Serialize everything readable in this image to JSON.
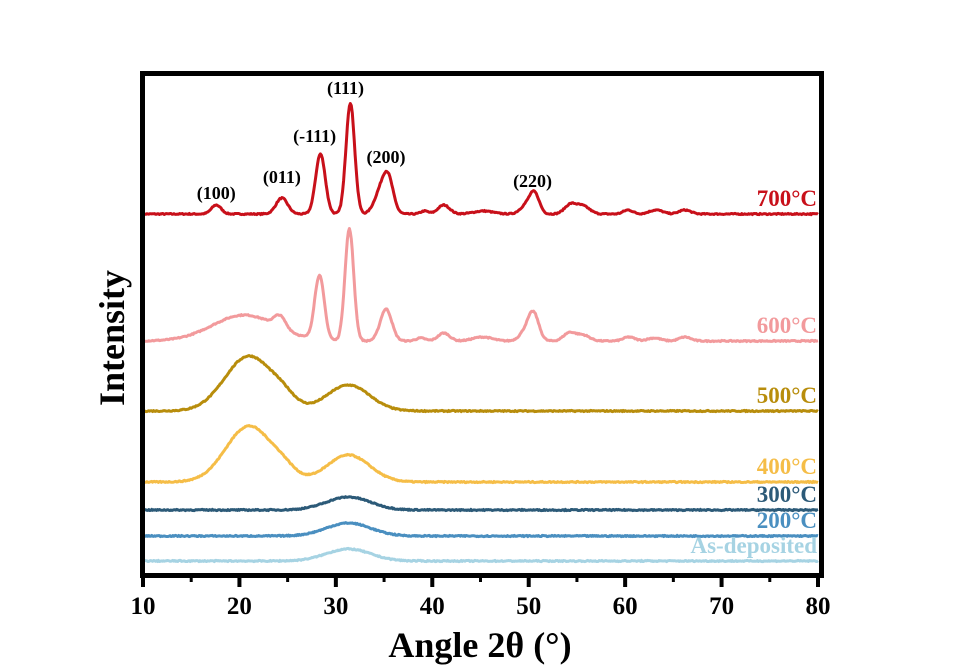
{
  "chart_data": {
    "type": "line",
    "title": "",
    "xlabel": "Angle 2θ (°)",
    "ylabel": "Intensity",
    "xlim": [
      10,
      80
    ],
    "ylim": [
      0,
      504
    ],
    "xticks": [
      10,
      20,
      30,
      40,
      50,
      60,
      70,
      80
    ],
    "xtick_labels": [
      "10",
      "20",
      "30",
      "40",
      "50",
      "60",
      "70",
      "80"
    ],
    "minor_xticks": [
      15,
      25,
      35,
      45,
      55,
      65,
      75
    ],
    "yticks": [],
    "grid": false,
    "legend": "inline-right",
    "series": [
      {
        "name": "700°C",
        "color": "#c8101a",
        "baseline": 362,
        "peaks": [
          [
            17.6,
            9,
            0.5
          ],
          [
            24.4,
            16,
            0.6
          ],
          [
            28.4,
            60,
            0.5
          ],
          [
            31.5,
            111,
            0.45
          ],
          [
            34.5,
            18,
            0.6
          ],
          [
            35.4,
            36,
            0.55
          ],
          [
            39.2,
            3,
            0.4
          ],
          [
            41.2,
            9,
            0.6
          ],
          [
            45.3,
            3,
            1.0
          ],
          [
            49.7,
            8,
            0.6
          ],
          [
            50.6,
            20,
            0.5
          ],
          [
            54.3,
            9,
            0.6
          ],
          [
            55.6,
            8,
            0.7
          ],
          [
            60.3,
            4,
            0.5
          ],
          [
            63.2,
            4,
            0.7
          ],
          [
            66.2,
            4,
            0.6
          ]
        ]
      },
      {
        "name": "600°C",
        "color": "#f29a9c",
        "baseline": 235,
        "peaks": [
          [
            20.5,
            26,
            3.3
          ],
          [
            24.2,
            12,
            0.6
          ],
          [
            28.3,
            64,
            0.5
          ],
          [
            31.4,
            112,
            0.45
          ],
          [
            35.2,
            32,
            0.6
          ],
          [
            38.8,
            3,
            0.5
          ],
          [
            41.2,
            8,
            0.6
          ],
          [
            45.2,
            4,
            1.0
          ],
          [
            49.6,
            8,
            0.6
          ],
          [
            50.5,
            27,
            0.55
          ],
          [
            54.2,
            8,
            0.6
          ],
          [
            55.6,
            6,
            0.7
          ],
          [
            60.4,
            4,
            0.6
          ],
          [
            63.0,
            3,
            0.7
          ],
          [
            66.2,
            4,
            0.6
          ]
        ]
      },
      {
        "name": "500°C",
        "color": "#b88d0c",
        "baseline": 165,
        "peaks": [
          [
            21.0,
            55,
            2.5
          ],
          [
            24.6,
            8,
            1.2
          ],
          [
            31.3,
            26,
            2.2
          ]
        ]
      },
      {
        "name": "400°C",
        "color": "#f5bd47",
        "baseline": 94,
        "peaks": [
          [
            21.0,
            56,
            2.4
          ],
          [
            24.6,
            8,
            1.2
          ],
          [
            31.3,
            27,
            2.2
          ]
        ]
      },
      {
        "name": "300°C",
        "color": "#2c5a78",
        "baseline": 66,
        "peaks": [
          [
            31.3,
            13,
            2.3
          ]
        ]
      },
      {
        "name": "200°C",
        "color": "#4a8fc0",
        "baseline": 40,
        "peaks": [
          [
            31.3,
            13,
            2.3
          ]
        ]
      },
      {
        "name": "As-deposited",
        "color": "#a6d3e3",
        "baseline": 15,
        "peaks": [
          [
            31.3,
            12,
            2.3
          ]
        ]
      }
    ],
    "annotations": [
      {
        "text": "(100)",
        "x": 17.6,
        "y": 377
      },
      {
        "text": "(011)",
        "x": 24.4,
        "y": 393
      },
      {
        "text": "(-111)",
        "x": 27.8,
        "y": 434
      },
      {
        "text": "(111)",
        "x": 31.0,
        "y": 482
      },
      {
        "text": "(200)",
        "x": 35.2,
        "y": 413
      },
      {
        "text": "(220)",
        "x": 50.4,
        "y": 389
      }
    ]
  }
}
